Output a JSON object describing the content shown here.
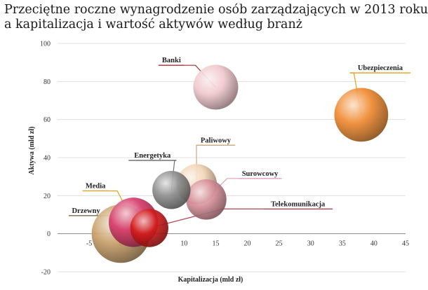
{
  "title": {
    "line1": "Przeciętne roczne wynagrodzenie osób zarządzających w 2013 roku",
    "line2": "a kapitalizacja i wartość aktywów według branż"
  },
  "chart_data": {
    "type": "bubble",
    "title": "Przeciętne roczne wynagrodzenie osób zarządzających w 2013 roku a kapitalizacja i wartość aktywów według branż",
    "xlabel": "Kapitalizacja (mld zł)",
    "ylabel": "Aktywa (mld zł)",
    "xlim": [
      -10,
      45
    ],
    "ylim": [
      -20,
      100
    ],
    "xticks": [
      -5,
      0,
      5,
      10,
      15,
      20,
      25,
      30,
      35,
      40,
      45
    ],
    "yticks": [
      -20,
      0,
      20,
      40,
      60,
      80,
      100
    ],
    "grid": "horizontal",
    "series": [
      {
        "name": "Drzewny",
        "x": 0,
        "y": 0,
        "size": 1.3,
        "color": "#c9a06a",
        "label_x": -5.5,
        "label_y": 11,
        "line_color": "#7a6a4a"
      },
      {
        "name": "Media",
        "x": 2,
        "y": 6,
        "size": 1.1,
        "color": "#d63a6a",
        "label_x": -4,
        "label_y": 24,
        "line_color": "#e0a020"
      },
      {
        "name": "Telekomunikacja",
        "x": 4.5,
        "y": 3,
        "size": 0.85,
        "color": "#d41b1b",
        "label_x": 28,
        "label_y": 14.5,
        "line_color": "#b04050"
      },
      {
        "name": "Energetyka",
        "x": 8,
        "y": 23,
        "size": 0.85,
        "color": "#8e8e8e",
        "label_x": 5,
        "label_y": 40,
        "line_color": "#707070"
      },
      {
        "name": "Paliwowy",
        "x": 12,
        "y": 26,
        "size": 0.9,
        "color": "#f2d4b4",
        "label_x": 15,
        "label_y": 48,
        "line_color": "#c8a878"
      },
      {
        "name": "Surowcowy",
        "x": 13.5,
        "y": 18,
        "size": 0.9,
        "color": "#d8909a",
        "label_x": 22,
        "label_y": 30.5,
        "line_color": "#e0a0b0"
      },
      {
        "name": "Banki",
        "x": 15,
        "y": 77,
        "size": 1.0,
        "color": "#f0c8cc",
        "label_x": 8,
        "label_y": 90,
        "line_color": "#a03030"
      },
      {
        "name": "Ubezpieczenia",
        "x": 38,
        "y": 62.5,
        "size": 1.2,
        "color": "#f08a30",
        "label_x": 41,
        "label_y": 86,
        "line_color": "#e0a020"
      }
    ]
  }
}
